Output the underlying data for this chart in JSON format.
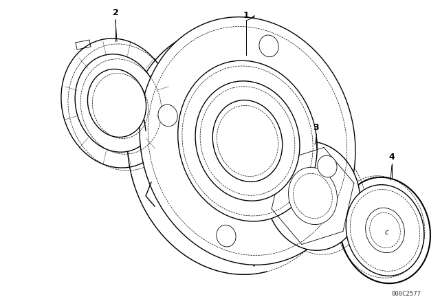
{
  "background_color": "#ffffff",
  "line_color": "#000000",
  "watermark": "000C2577",
  "figsize": [
    6.4,
    4.48
  ],
  "dpi": 100,
  "lw_main": 1.0,
  "lw_thin": 0.6,
  "lw_dash": 0.5
}
